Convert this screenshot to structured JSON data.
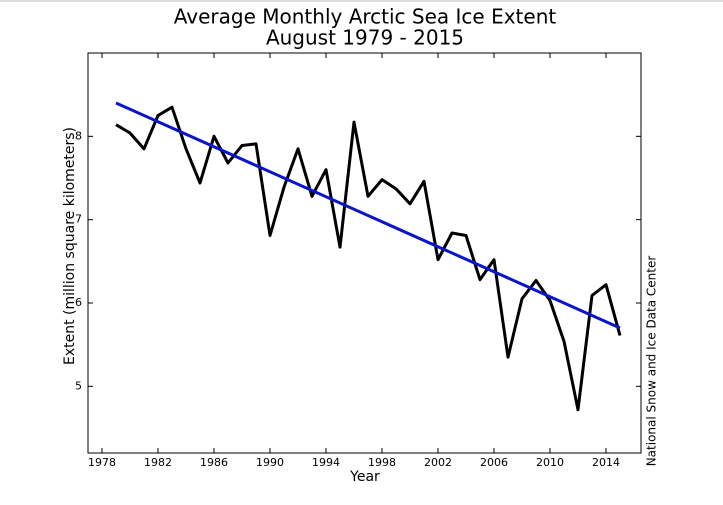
{
  "chart_data": {
    "type": "line",
    "title": "Average Monthly Arctic Sea Ice Extent",
    "subtitle": "August 1979 - 2015",
    "x_label": "Year",
    "y_label": "Extent (million square kilometers)",
    "credit": "National Snow and Ice Data Center",
    "xlim": [
      1977,
      2016.5
    ],
    "xticks": [
      1978,
      1982,
      1986,
      1990,
      1994,
      1998,
      2002,
      2006,
      2010,
      2014
    ],
    "ylim": [
      4.2,
      9
    ],
    "yticks": [
      5,
      6,
      7,
      8
    ],
    "grid": false,
    "series": [
      {
        "color": "#000000",
        "x": [
          1979,
          1980,
          1981,
          1982,
          1983,
          1984,
          1985,
          1986,
          1987,
          1988,
          1989,
          1990,
          1991,
          1992,
          1993,
          1994,
          1995,
          1996,
          1997,
          1998,
          1999,
          2000,
          2001,
          2002,
          2003,
          2004,
          2005,
          2006,
          2007,
          2008,
          2009,
          2010,
          2011,
          2012,
          2013,
          2014,
          2015
        ],
        "values": [
          8.14,
          8.04,
          7.85,
          8.25,
          8.35,
          7.85,
          7.44,
          8.0,
          7.68,
          7.89,
          7.91,
          6.81,
          7.39,
          7.85,
          7.28,
          7.6,
          6.67,
          8.17,
          7.28,
          7.48,
          7.37,
          7.19,
          7.46,
          6.52,
          6.84,
          6.81,
          6.28,
          6.52,
          5.35,
          6.05,
          6.27,
          6.03,
          5.54,
          4.72,
          6.09,
          6.22,
          5.61
        ]
      },
      {
        "color": "#0a14c8",
        "x": [
          1979,
          2015
        ],
        "values": [
          8.4,
          5.7
        ]
      }
    ]
  }
}
